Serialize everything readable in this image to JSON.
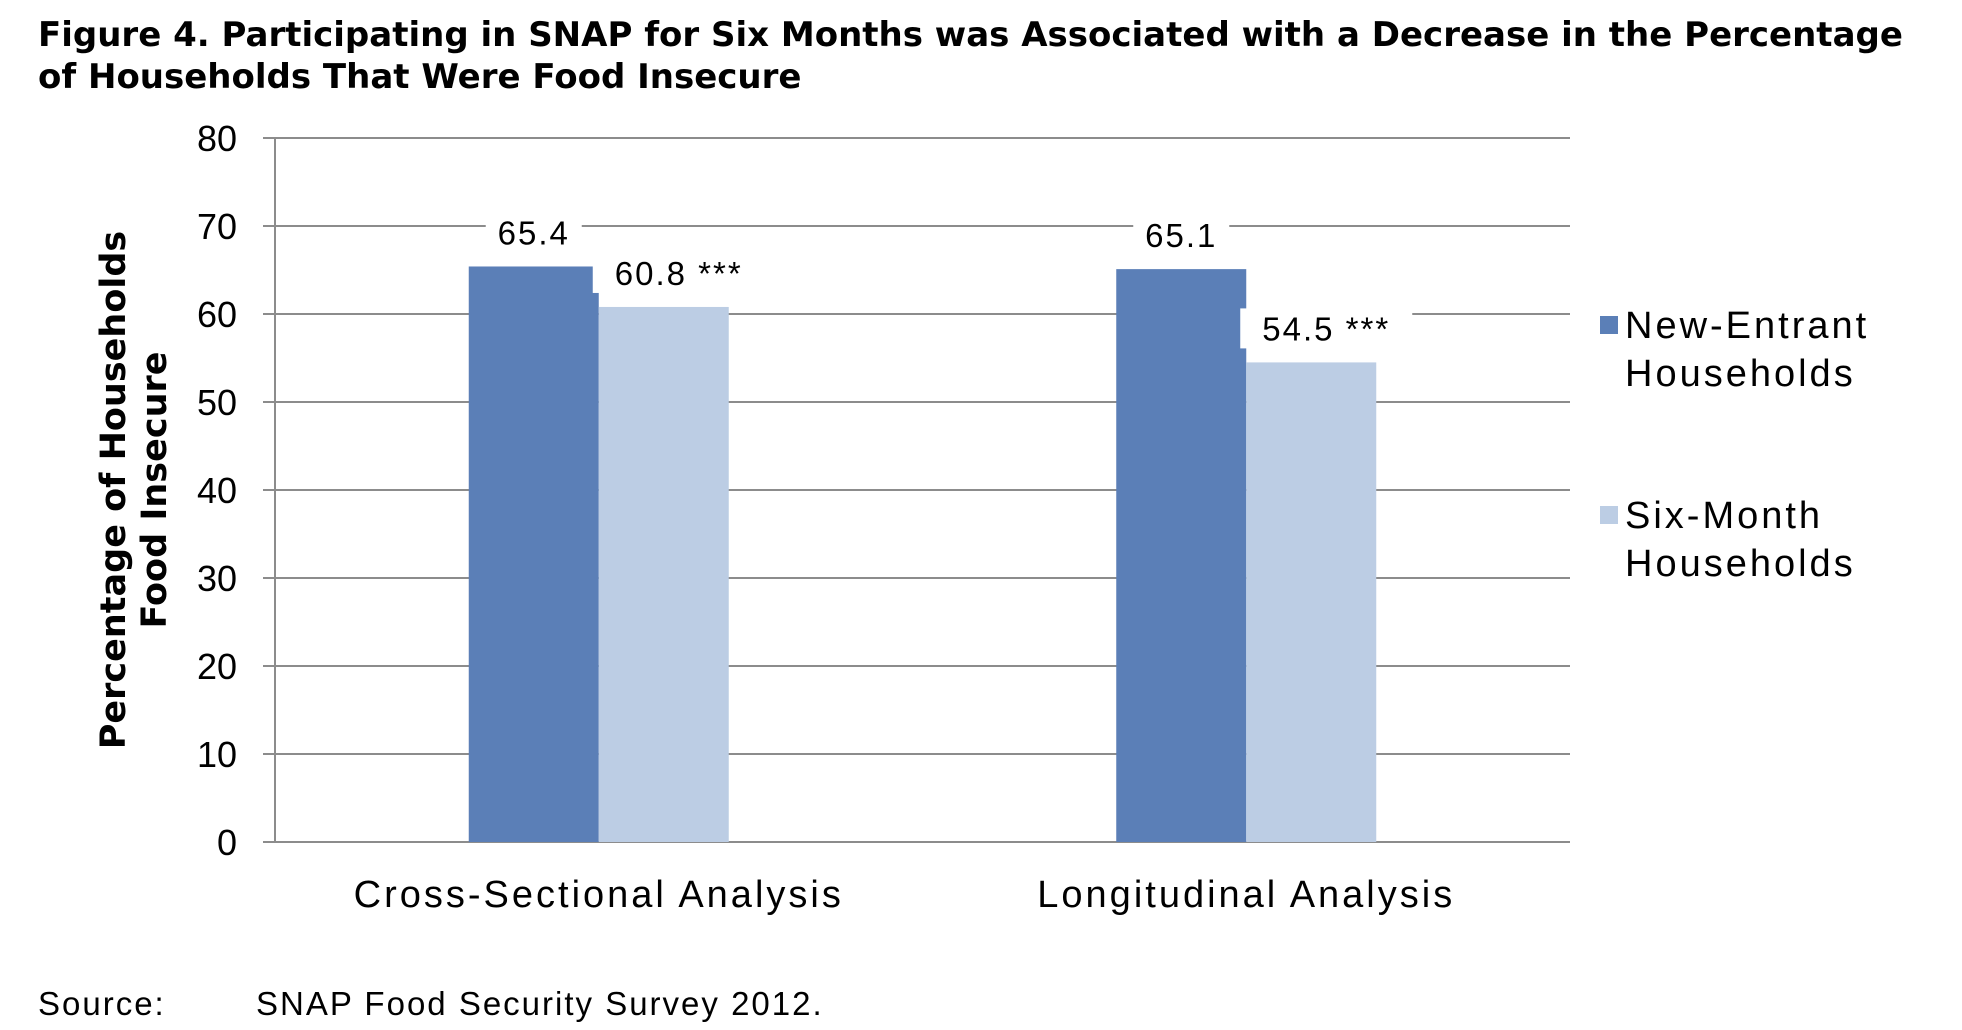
{
  "figure": {
    "title": "Figure 4. Participating in SNAP for Six Months was Associated with a Decrease in the Percentage of Households That Were Food Insecure"
  },
  "source": {
    "label": "Source:",
    "text": "SNAP Food Security Survey 2012."
  },
  "colors": {
    "new_entrant": "#5b7fb7",
    "six_month": "#bccde4",
    "grid": "#8c8c8c",
    "text": "#000000"
  },
  "chart_data": {
    "type": "bar",
    "categories": [
      "Cross-Sectional Analysis",
      "Longitudinal Analysis"
    ],
    "series": [
      {
        "name": "New-Entrant Households",
        "values": [
          65.4,
          65.1
        ],
        "labels": [
          "65.4",
          "65.1"
        ]
      },
      {
        "name": "Six-Month Households",
        "values": [
          60.8,
          54.5
        ],
        "labels": [
          "60.8 ***",
          "54.5 ***"
        ]
      }
    ],
    "ylabel_lines": [
      "Percentage of Households",
      "Food Insecure"
    ],
    "xlabel": "",
    "ylim": [
      0,
      80
    ],
    "yticks": [
      0,
      10,
      20,
      30,
      40,
      50,
      60,
      70,
      80
    ],
    "grid": true,
    "legend_position": "right"
  }
}
